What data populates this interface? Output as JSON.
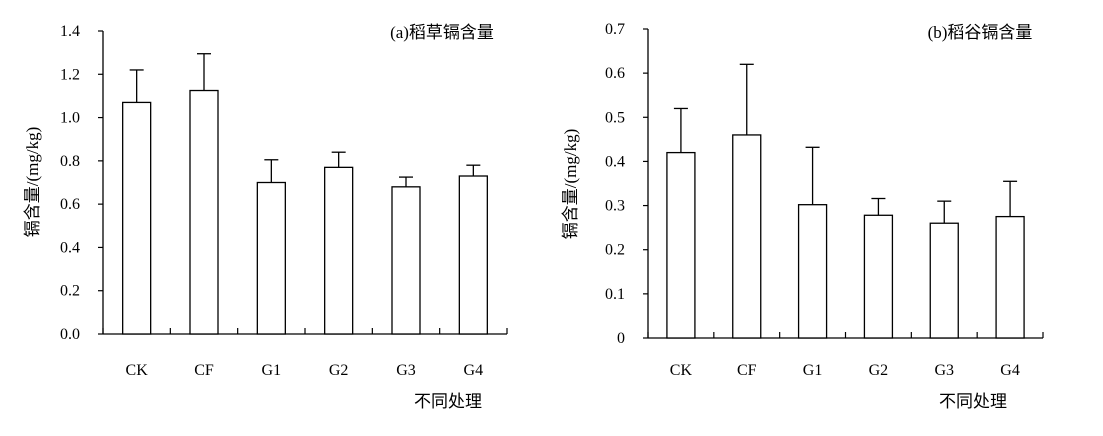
{
  "chart_data": [
    {
      "type": "bar",
      "title": "(a)稻草镉含量",
      "xlabel": "不同处理",
      "ylabel": "镉含量/(mg/kg)",
      "categories": [
        "CK",
        "CF",
        "G1",
        "G2",
        "G3",
        "G4"
      ],
      "values": [
        1.07,
        1.125,
        0.7,
        0.77,
        0.68,
        0.73
      ],
      "error": [
        0.15,
        0.17,
        0.105,
        0.07,
        0.045,
        0.05
      ],
      "ylim": [
        0,
        1.4
      ],
      "yticks": [
        "0.0",
        "0.2",
        "0.4",
        "0.6",
        "0.8",
        "1.0",
        "1.2",
        "1.4"
      ],
      "grid": false,
      "bar_color": "#ffffff",
      "edge_color": "#000000"
    },
    {
      "type": "bar",
      "title": "(b)稻谷镉含量",
      "xlabel": "不同处理",
      "ylabel": "镉含量/(mg/kg)",
      "categories": [
        "CK",
        "CF",
        "G1",
        "G2",
        "G3",
        "G4"
      ],
      "values": [
        0.42,
        0.46,
        0.302,
        0.278,
        0.26,
        0.275
      ],
      "error": [
        0.1,
        0.16,
        0.13,
        0.038,
        0.05,
        0.08
      ],
      "ylim": [
        0,
        0.7
      ],
      "yticks": [
        "0",
        "0.1",
        "0.2",
        "0.3",
        "0.4",
        "0.5",
        "0.6",
        "0.7"
      ],
      "grid": false,
      "bar_color": "#ffffff",
      "edge_color": "#000000"
    }
  ]
}
